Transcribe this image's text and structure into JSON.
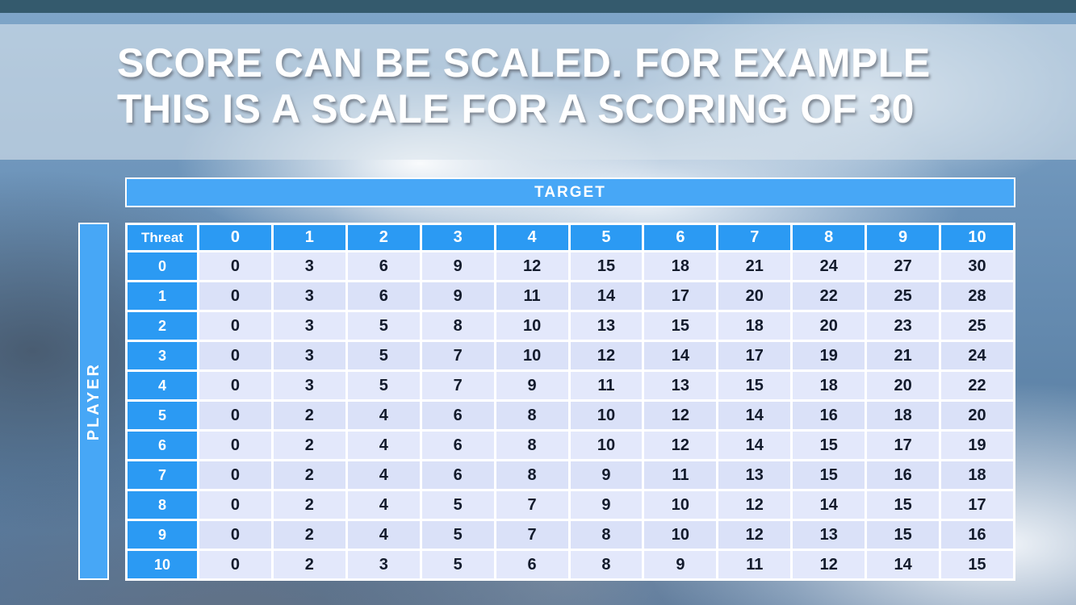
{
  "slide": {
    "title_line1": "SCORE CAN BE SCALED. FOR EXAMPLE",
    "title_line2": "THIS IS A SCALE FOR A SCORING OF 30"
  },
  "table": {
    "target_label": "TARGET",
    "player_label": "PLAYER",
    "corner_label": "Threat",
    "col_headers": [
      "0",
      "1",
      "2",
      "3",
      "4",
      "5",
      "6",
      "7",
      "8",
      "9",
      "10"
    ],
    "rows": [
      {
        "player": "0",
        "values": [
          "0",
          "3",
          "6",
          "9",
          "12",
          "15",
          "18",
          "21",
          "24",
          "27",
          "30"
        ]
      },
      {
        "player": "1",
        "values": [
          "0",
          "3",
          "6",
          "9",
          "11",
          "14",
          "17",
          "20",
          "22",
          "25",
          "28"
        ]
      },
      {
        "player": "2",
        "values": [
          "0",
          "3",
          "5",
          "8",
          "10",
          "13",
          "15",
          "18",
          "20",
          "23",
          "25"
        ]
      },
      {
        "player": "3",
        "values": [
          "0",
          "3",
          "5",
          "7",
          "10",
          "12",
          "14",
          "17",
          "19",
          "21",
          "24"
        ]
      },
      {
        "player": "4",
        "values": [
          "0",
          "3",
          "5",
          "7",
          "9",
          "11",
          "13",
          "15",
          "18",
          "20",
          "22"
        ]
      },
      {
        "player": "5",
        "values": [
          "0",
          "2",
          "4",
          "6",
          "8",
          "10",
          "12",
          "14",
          "16",
          "18",
          "20"
        ]
      },
      {
        "player": "6",
        "values": [
          "0",
          "2",
          "4",
          "6",
          "8",
          "10",
          "12",
          "14",
          "15",
          "17",
          "19"
        ]
      },
      {
        "player": "7",
        "values": [
          "0",
          "2",
          "4",
          "6",
          "8",
          "9",
          "11",
          "13",
          "15",
          "16",
          "18"
        ]
      },
      {
        "player": "8",
        "values": [
          "0",
          "2",
          "4",
          "5",
          "7",
          "9",
          "10",
          "12",
          "14",
          "15",
          "17"
        ]
      },
      {
        "player": "9",
        "values": [
          "0",
          "2",
          "4",
          "5",
          "7",
          "8",
          "10",
          "12",
          "13",
          "15",
          "16"
        ]
      },
      {
        "player": "10",
        "values": [
          "0",
          "2",
          "3",
          "5",
          "6",
          "8",
          "9",
          "11",
          "12",
          "14",
          "15"
        ]
      }
    ]
  },
  "chart_data": {
    "type": "table",
    "col_axis": "TARGET",
    "row_axis": "PLAYER",
    "columns": [
      0,
      1,
      2,
      3,
      4,
      5,
      6,
      7,
      8,
      9,
      10
    ],
    "rows": [
      0,
      1,
      2,
      3,
      4,
      5,
      6,
      7,
      8,
      9,
      10
    ],
    "values": [
      [
        0,
        3,
        6,
        9,
        12,
        15,
        18,
        21,
        24,
        27,
        30
      ],
      [
        0,
        3,
        6,
        9,
        11,
        14,
        17,
        20,
        22,
        25,
        28
      ],
      [
        0,
        3,
        5,
        8,
        10,
        13,
        15,
        18,
        20,
        23,
        25
      ],
      [
        0,
        3,
        5,
        7,
        10,
        12,
        14,
        17,
        19,
        21,
        24
      ],
      [
        0,
        3,
        5,
        7,
        9,
        11,
        13,
        15,
        18,
        20,
        22
      ],
      [
        0,
        2,
        4,
        6,
        8,
        10,
        12,
        14,
        16,
        18,
        20
      ],
      [
        0,
        2,
        4,
        6,
        8,
        10,
        12,
        14,
        15,
        17,
        19
      ],
      [
        0,
        2,
        4,
        6,
        8,
        9,
        11,
        13,
        15,
        16,
        18
      ],
      [
        0,
        2,
        4,
        5,
        7,
        9,
        10,
        12,
        14,
        15,
        17
      ],
      [
        0,
        2,
        4,
        5,
        7,
        8,
        10,
        12,
        13,
        15,
        16
      ],
      [
        0,
        2,
        3,
        5,
        6,
        8,
        9,
        11,
        12,
        14,
        15
      ]
    ]
  }
}
